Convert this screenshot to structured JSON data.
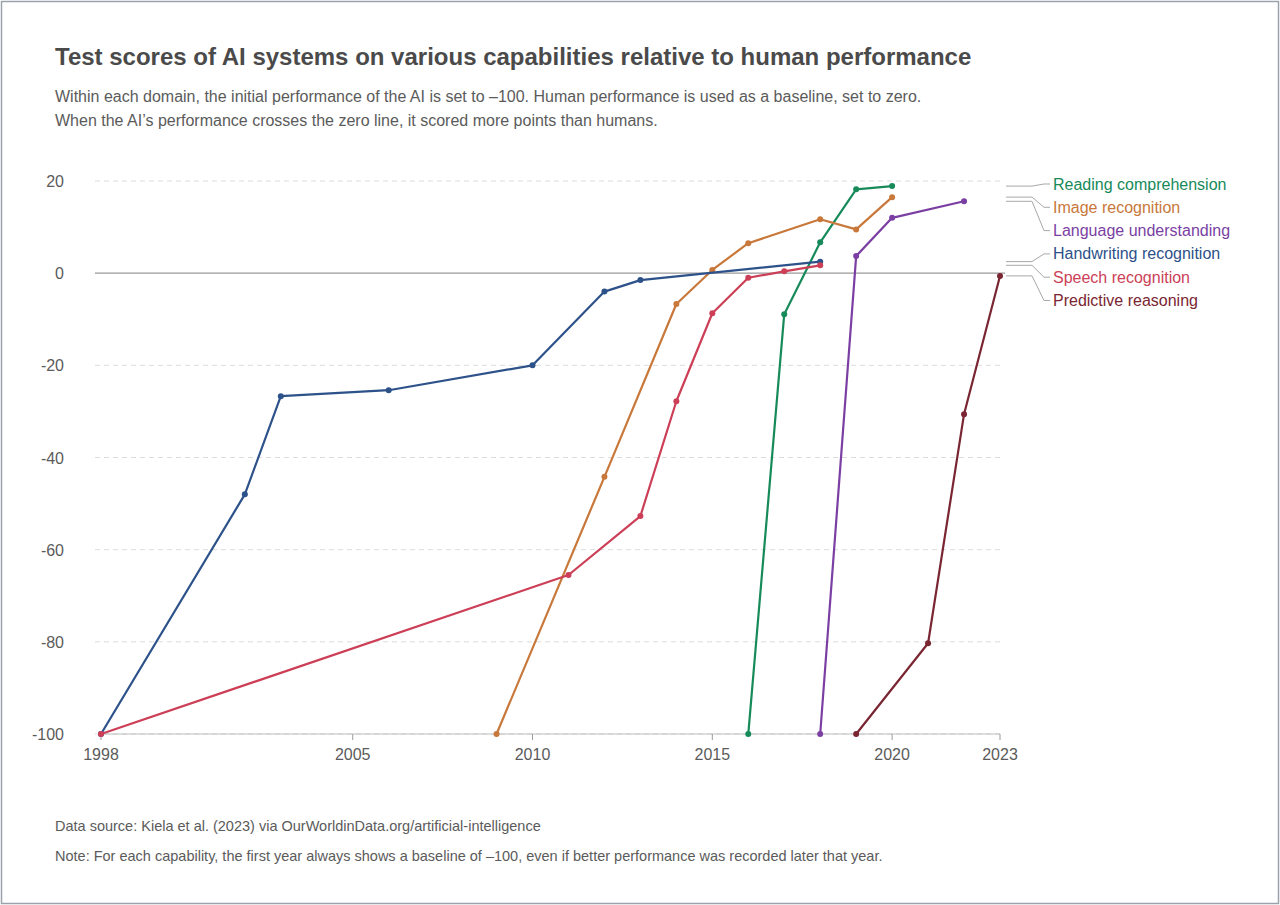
{
  "chart_data": {
    "type": "line",
    "title": "Test scores of AI systems on various capabilities relative to human performance",
    "subtitle": [
      "Within each domain, the initial performance of the AI is set to –100. Human performance is used as a baseline, set to zero.",
      "When the AI’s performance crosses the zero line, it scored more points than humans."
    ],
    "source": "Data source: Kiela et al. (2023) via OurWorldinData.org/artificial-intelligence",
    "note": "Note: For each capability, the first year always shows a baseline of –100, even if better performance was recorded later that year.",
    "xlim": [
      1998,
      2023
    ],
    "xticks": [
      1998,
      2005,
      2010,
      2015,
      2020,
      2023
    ],
    "ylim": [
      -100,
      20
    ],
    "yticks": [
      -100,
      -80,
      -60,
      -40,
      -20,
      0,
      20
    ],
    "grid": true,
    "marker": "circle",
    "series": [
      {
        "name": "Reading comprehension",
        "color": "#178a5a",
        "x": [
          2016,
          2017,
          2018,
          2019,
          2020
        ],
        "values": [
          -100,
          -8.9,
          6.7,
          18.2,
          18.9
        ]
      },
      {
        "name": "Image recognition",
        "color": "#c8783a",
        "x": [
          2009,
          2012,
          2014,
          2015,
          2016,
          2018,
          2019,
          2020
        ],
        "values": [
          -100,
          -44.2,
          -6.7,
          0.7,
          6.5,
          11.7,
          9.5,
          16.5
        ]
      },
      {
        "name": "Language understanding",
        "color": "#7b3fa3",
        "x": [
          2018,
          2019,
          2020,
          2022
        ],
        "values": [
          -100,
          3.7,
          12,
          15.6
        ]
      },
      {
        "name": "Handwriting recognition",
        "color": "#2d5189",
        "x": [
          1998,
          2002,
          2003,
          2006,
          2010,
          2012,
          2013,
          2018
        ],
        "values": [
          -100,
          -48,
          -26.7,
          -25.4,
          -20,
          -4,
          -1.5,
          2.5
        ]
      },
      {
        "name": "Speech recognition",
        "color": "#cc3f57",
        "x": [
          1998,
          2011,
          2013,
          2014,
          2015,
          2016,
          2017,
          2018
        ],
        "values": [
          -100,
          -65.5,
          -52.7,
          -27.8,
          -8.7,
          -1,
          0.4,
          1.7
        ]
      },
      {
        "name": "Predictive reasoning",
        "color": "#7a2632",
        "x": [
          2019,
          2021,
          2022,
          2023
        ],
        "values": [
          -100,
          -80.3,
          -30.6,
          -0.6
        ]
      }
    ]
  }
}
